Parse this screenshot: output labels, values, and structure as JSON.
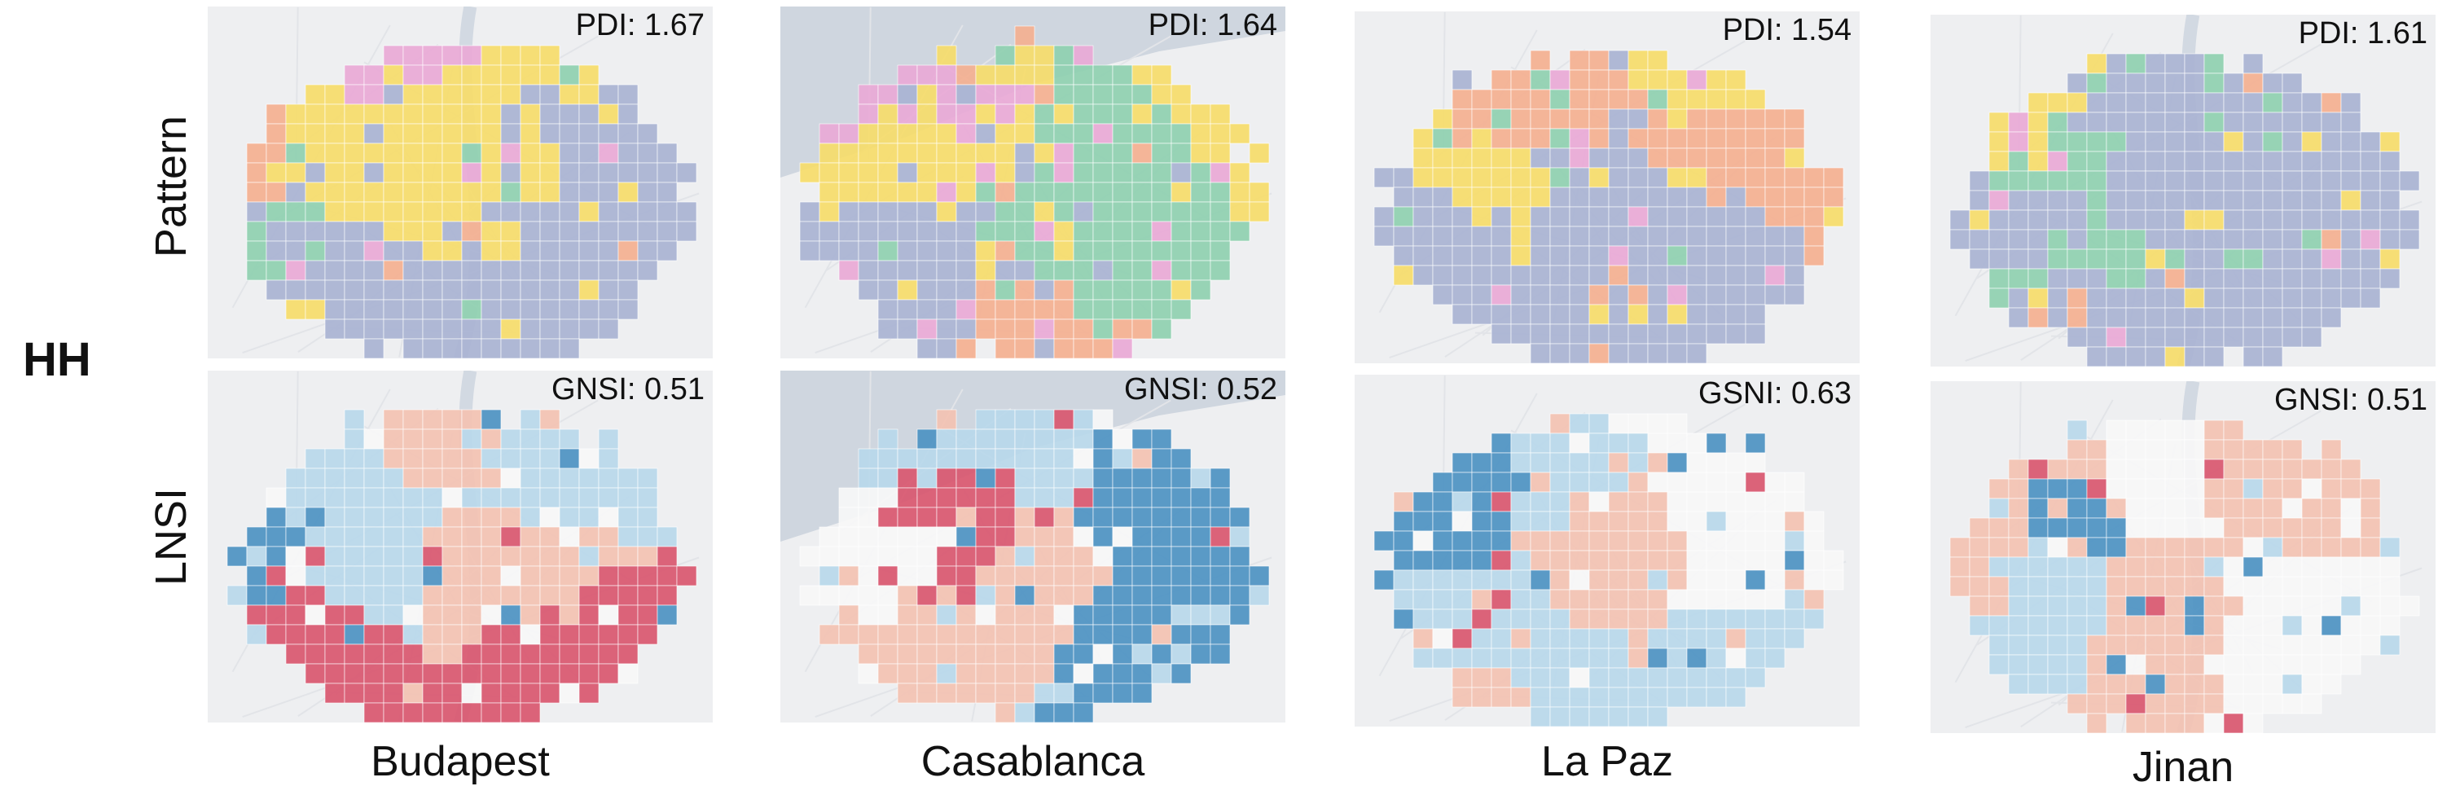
{
  "group_label": "HH",
  "row_labels": {
    "pattern": "Pattern",
    "lnsi": "LNSI"
  },
  "cities": [
    {
      "name": "Budapest",
      "pattern_metric": "PDI: 1.67",
      "lnsi_metric": "GNSI: 0.51",
      "seed": 11,
      "water": "river"
    },
    {
      "name": "Casablanca",
      "pattern_metric": "PDI: 1.64",
      "lnsi_metric": "GNSI: 0.52",
      "seed": 23,
      "water": "sea"
    },
    {
      "name": "La Paz",
      "pattern_metric": "PDI: 1.54",
      "lnsi_metric": "GSNI: 0.63",
      "seed": 37,
      "water": "none"
    },
    {
      "name": "Jinan",
      "pattern_metric": "PDI: 1.61",
      "lnsi_metric": "GNSI: 0.51",
      "seed": 53,
      "water": "river"
    }
  ],
  "pattern_colors": {
    "purple": "#a9b3d3",
    "green": "#8fd0b0",
    "yellow": "#f6dc6a",
    "pink": "#e9a9d6",
    "orange": "#f4b090"
  },
  "lnsi_colors": {
    "high_high": "#d9576f",
    "high_low": "#f3c2b2",
    "low_high": "#b9d8ea",
    "low_low": "#4d92c2",
    "none": "#f7f7f7"
  },
  "basemap_colors": {
    "land": "#eeeff1",
    "sea": "#cfd6df",
    "river": "#d2d9e2"
  }
}
